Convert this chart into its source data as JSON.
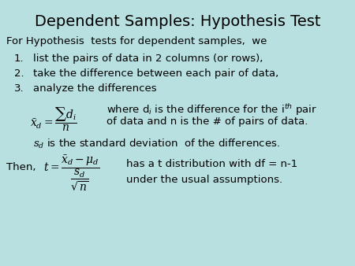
{
  "title": "Dependent Samples: Hypothesis Test",
  "background_color": "#b8e0e0",
  "title_fontsize": 14,
  "body_fontsize": 9.5,
  "math_fontsize": 9,
  "intro_text": "For Hypothesis  tests for dependent samples,  we",
  "list_items": [
    "list the pairs of data in 2 columns (or rows),",
    "take the difference between each pair of data,",
    "analyze the differences"
  ],
  "formula1_left": "$\\bar{x}_d = \\dfrac{\\sum d_i}{n}$",
  "formula1_right_line1": "where d$_i$ is the difference for the i$^{th}$ pair",
  "formula1_right_line2": "of data and n is the # of pairs of data.",
  "sd_line": "$s_d$ is the standard deviation  of the differences.",
  "then_label": "Then,",
  "formula2": "$t = \\dfrac{\\bar{x}_d - \\mu_d}{\\dfrac{s_d}{\\sqrt{n}}}$",
  "formula2_right_line1": "has a t distribution with df = n-1",
  "formula2_right_line2": "under the usual assumptions."
}
